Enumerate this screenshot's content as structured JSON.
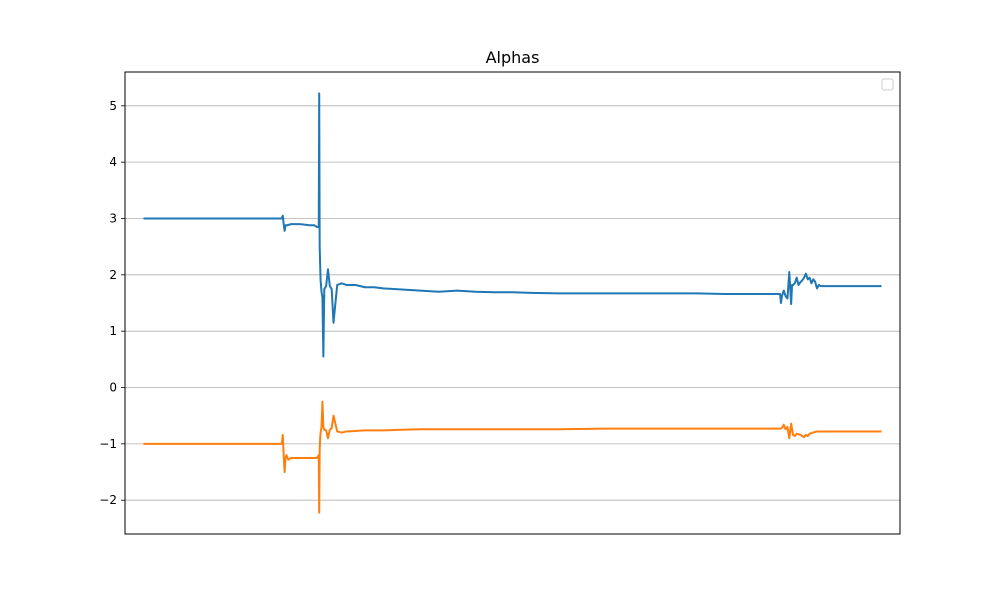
{
  "chart_data": {
    "type": "line",
    "title": "Alphas",
    "xlabel": "",
    "ylabel": "",
    "grid": "y-axis only",
    "legend": {
      "placement": "top-right",
      "entries": []
    },
    "xlim": [
      -20,
      820
    ],
    "ylim": [
      -2.6,
      5.6
    ],
    "yticks": [
      -2,
      -1,
      0,
      1,
      2,
      3,
      4,
      5
    ],
    "ytick_labels": [
      "−2",
      "−1",
      "0",
      "1",
      "2",
      "3",
      "4",
      "5"
    ],
    "series": [
      {
        "color": "#1f77b4",
        "x": [
          0,
          150,
          151,
          152,
          153,
          154,
          156,
          160,
          170,
          180,
          185,
          188,
          190,
          190.5,
          191,
          191.5,
          192,
          193,
          194,
          195,
          196,
          198,
          200,
          202,
          204,
          206,
          210,
          215,
          220,
          230,
          240,
          250,
          260,
          280,
          300,
          320,
          340,
          360,
          380,
          400,
          420,
          450,
          480,
          510,
          540,
          570,
          600,
          630,
          660,
          680,
          690,
          691,
          692,
          694,
          696,
          698,
          700,
          702,
          703,
          704,
          706,
          708,
          710,
          712,
          714,
          716,
          718,
          720,
          722,
          724,
          726,
          728,
          730,
          732,
          734,
          736,
          800
        ],
        "y": [
          3.0,
          3.0,
          3.05,
          2.9,
          2.78,
          2.88,
          2.88,
          2.9,
          2.9,
          2.88,
          2.88,
          2.85,
          2.85,
          5.22,
          2.5,
          2.2,
          1.9,
          1.7,
          1.6,
          0.55,
          1.75,
          1.8,
          2.1,
          1.8,
          1.75,
          1.15,
          1.82,
          1.85,
          1.82,
          1.82,
          1.78,
          1.78,
          1.76,
          1.74,
          1.72,
          1.7,
          1.72,
          1.7,
          1.69,
          1.69,
          1.68,
          1.67,
          1.67,
          1.67,
          1.67,
          1.67,
          1.67,
          1.66,
          1.66,
          1.66,
          1.66,
          1.5,
          1.62,
          1.72,
          1.62,
          1.58,
          2.05,
          1.48,
          1.82,
          1.82,
          1.85,
          1.95,
          1.82,
          1.87,
          1.9,
          1.95,
          2.02,
          1.92,
          1.95,
          1.85,
          1.92,
          1.88,
          1.76,
          1.82,
          1.8,
          1.8,
          1.8
        ]
      },
      {
        "color": "#ff7f0e",
        "x": [
          0,
          150,
          151,
          152,
          153,
          154,
          155,
          157,
          160,
          170,
          180,
          188,
          190,
          190.5,
          191,
          191.5,
          192,
          193,
          194,
          195,
          196,
          198,
          200,
          202,
          204,
          206,
          210,
          215,
          220,
          240,
          260,
          280,
          300,
          350,
          400,
          450,
          500,
          550,
          600,
          650,
          680,
          690,
          692,
          694,
          696,
          698,
          700,
          702,
          704,
          706,
          708,
          712,
          716,
          718,
          720,
          722,
          726,
          730,
          734,
          800
        ],
        "y": [
          -1.0,
          -1.0,
          -0.84,
          -1.2,
          -1.5,
          -1.25,
          -1.2,
          -1.28,
          -1.25,
          -1.25,
          -1.25,
          -1.25,
          -1.2,
          -2.22,
          -1.1,
          -0.9,
          -0.8,
          -0.7,
          -0.25,
          -0.7,
          -0.75,
          -0.76,
          -0.9,
          -0.75,
          -0.72,
          -0.5,
          -0.78,
          -0.8,
          -0.78,
          -0.76,
          -0.76,
          -0.75,
          -0.74,
          -0.74,
          -0.74,
          -0.74,
          -0.73,
          -0.73,
          -0.73,
          -0.73,
          -0.73,
          -0.73,
          -0.72,
          -0.66,
          -0.74,
          -0.7,
          -0.9,
          -0.64,
          -0.84,
          -0.86,
          -0.82,
          -0.84,
          -0.88,
          -0.84,
          -0.86,
          -0.82,
          -0.8,
          -0.78,
          -0.78,
          -0.78
        ]
      }
    ]
  }
}
